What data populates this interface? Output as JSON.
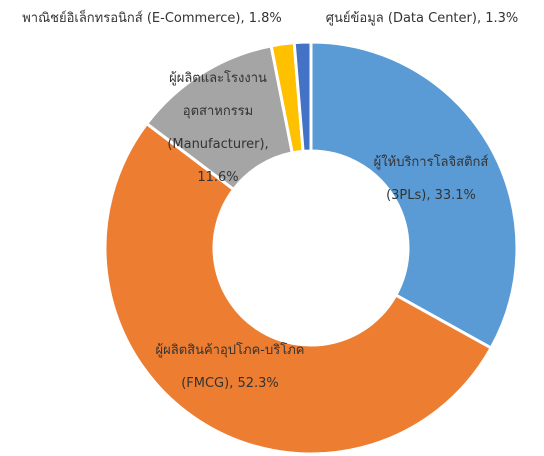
{
  "chart_data": {
    "type": "donut",
    "categories": [
      "ผู้ให้บริการโลจิสติกส์ (3PLs),",
      "ผู้ผลิตสินค้าอุปโภค-บริโภค (FMCG),",
      "ผู้ผลิตและโรงงานอุตสาหกรรม (Manufacturer),",
      "พาณิชย์อิเล็กทรอนิกส์ (E-Commerce),",
      "ศูนย์ข้อมูล (Data Center),"
    ],
    "values": [
      33.1,
      52.3,
      11.6,
      1.8,
      1.3
    ],
    "value_labels": [
      "33.1%",
      "52.3%",
      "11.6%",
      "1.8%",
      "1.3%"
    ],
    "colors": [
      "#5b9bd5",
      "#ed7d31",
      "#a5a5a5",
      "#ffc000",
      "#4472c4"
    ]
  }
}
